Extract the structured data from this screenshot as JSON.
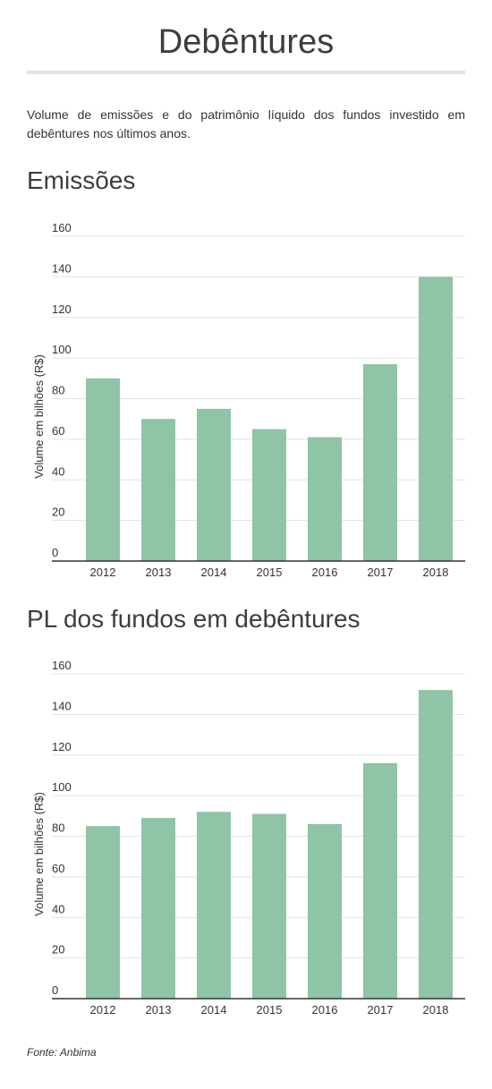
{
  "page": {
    "title": "Debêntures",
    "description": "Volume de emissões e do patrimônio líquido dos fundos investido em debêntures nos últimos anos.",
    "source": "Fonte: Anbima",
    "bar_color": "#8fc4a6"
  },
  "chart_data": [
    {
      "type": "bar",
      "title": "Emissões",
      "categories": [
        "2012",
        "2013",
        "2014",
        "2015",
        "2016",
        "2017",
        "2018"
      ],
      "values": [
        90,
        70,
        75,
        65,
        61,
        97,
        140
      ],
      "ylabel": "Volume em bilhões (R$)",
      "xlabel": "",
      "ylim": [
        0,
        160
      ],
      "yticks": [
        0,
        20,
        40,
        60,
        80,
        100,
        120,
        140,
        160
      ],
      "grid": true
    },
    {
      "type": "bar",
      "title": "PL dos fundos em debêntures",
      "categories": [
        "2012",
        "2013",
        "2014",
        "2015",
        "2016",
        "2017",
        "2018"
      ],
      "values": [
        85,
        89,
        92,
        91,
        86,
        116,
        152
      ],
      "ylabel": "Volume em bilhões (R$)",
      "xlabel": "",
      "ylim": [
        0,
        160
      ],
      "yticks": [
        0,
        20,
        40,
        60,
        80,
        100,
        120,
        140,
        160
      ],
      "grid": true
    }
  ]
}
